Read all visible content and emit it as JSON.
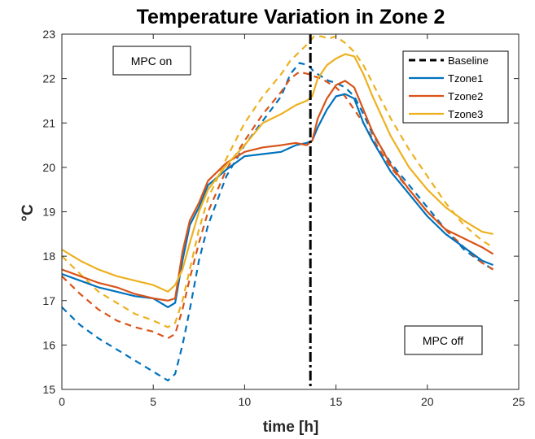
{
  "chart_data": {
    "type": "line",
    "title": "Temperature Variation in Zone 2",
    "xlabel": "time [h]",
    "ylabel": "°C",
    "xlim": [
      0,
      25
    ],
    "ylim": [
      15,
      23
    ],
    "xticks": [
      0,
      5,
      10,
      15,
      20,
      25
    ],
    "yticks": [
      15,
      16,
      17,
      18,
      19,
      20,
      21,
      22,
      23
    ],
    "grid": false,
    "legend": {
      "placement": "top-right",
      "entries": [
        {
          "label": "Baseline",
          "style": "dashed",
          "color": "#000000"
        },
        {
          "label": "Tzone1",
          "style": "solid",
          "color": "#0072BD"
        },
        {
          "label": "Tzone2",
          "style": "solid",
          "color": "#D95319"
        },
        {
          "label": "Tzone3",
          "style": "solid",
          "color": "#EDB120"
        }
      ]
    },
    "annotations": [
      {
        "id": "mpc-on",
        "text": "MPC on"
      },
      {
        "id": "mpc-off",
        "text": "MPC off"
      }
    ],
    "vline": {
      "x": 13.6,
      "style": "dash-dot",
      "color": "#000000"
    },
    "series": [
      {
        "name": "Tzone1",
        "style": "solid",
        "color": "#0072BD",
        "x": [
          0,
          1,
          2,
          3,
          4,
          5,
          5.8,
          6.2,
          6.6,
          7,
          7.5,
          8,
          9,
          10,
          11,
          12,
          12.8,
          13.4,
          13.7,
          14,
          14.5,
          15,
          15.5,
          16,
          16.5,
          17,
          18,
          19,
          20,
          21,
          22,
          23,
          23.6
        ],
        "y": [
          17.6,
          17.45,
          17.3,
          17.2,
          17.1,
          17.05,
          16.85,
          16.95,
          17.9,
          18.7,
          19.1,
          19.6,
          19.95,
          20.25,
          20.3,
          20.35,
          20.5,
          20.55,
          20.6,
          20.9,
          21.3,
          21.6,
          21.65,
          21.55,
          21.0,
          20.6,
          19.9,
          19.4,
          18.9,
          18.5,
          18.2,
          17.9,
          17.8
        ]
      },
      {
        "name": "Tzone2",
        "style": "solid",
        "color": "#D95319",
        "x": [
          0,
          1,
          2,
          3,
          4,
          5,
          5.8,
          6.2,
          6.6,
          7,
          7.5,
          8,
          9,
          10,
          11,
          12,
          12.8,
          13.4,
          13.7,
          14,
          14.5,
          15,
          15.5,
          16,
          16.5,
          17,
          18,
          19,
          20,
          21,
          22,
          23,
          23.6
        ],
        "y": [
          17.7,
          17.55,
          17.4,
          17.3,
          17.15,
          17.05,
          17.0,
          17.05,
          18.1,
          18.8,
          19.2,
          19.7,
          20.1,
          20.35,
          20.45,
          20.5,
          20.55,
          20.5,
          20.6,
          21.1,
          21.55,
          21.85,
          21.95,
          21.8,
          21.3,
          20.8,
          20.05,
          19.5,
          19.0,
          18.6,
          18.4,
          18.2,
          18.05
        ]
      },
      {
        "name": "Tzone3",
        "style": "solid",
        "color": "#EDB120",
        "x": [
          0,
          1,
          2,
          3,
          4,
          5,
          5.8,
          6.2,
          6.6,
          7,
          7.5,
          8,
          9,
          10,
          11,
          12,
          12.8,
          13.4,
          13.7,
          14,
          14.5,
          15,
          15.5,
          16,
          16.5,
          17,
          18,
          19,
          20,
          21,
          22,
          23,
          23.6
        ],
        "y": [
          18.15,
          17.9,
          17.7,
          17.55,
          17.45,
          17.35,
          17.2,
          17.35,
          17.7,
          18.3,
          19.0,
          19.5,
          20.05,
          20.5,
          21.0,
          21.2,
          21.4,
          21.5,
          21.6,
          22.0,
          22.3,
          22.45,
          22.55,
          22.5,
          22.1,
          21.6,
          20.7,
          20.0,
          19.5,
          19.1,
          18.8,
          18.55,
          18.5
        ]
      },
      {
        "name": "Baseline Tzone1",
        "style": "dashed",
        "color": "#0072BD",
        "x": [
          0,
          1,
          2,
          3,
          4,
          5,
          5.8,
          6.2,
          6.6,
          7,
          7.5,
          8,
          9,
          10,
          11,
          12,
          12.5,
          13,
          13.5,
          13.8,
          14.2,
          14.6,
          15,
          15.5,
          16,
          16.5,
          17,
          18,
          19,
          20,
          21,
          22,
          23,
          23.6
        ],
        "y": [
          16.85,
          16.45,
          16.15,
          15.9,
          15.65,
          15.4,
          15.2,
          15.35,
          16.0,
          16.8,
          17.9,
          18.7,
          19.8,
          20.5,
          21.05,
          21.6,
          22.1,
          22.35,
          22.3,
          22.15,
          22.05,
          21.95,
          21.9,
          21.8,
          21.6,
          21.2,
          20.75,
          20.1,
          19.6,
          19.1,
          18.6,
          18.15,
          17.85,
          17.7
        ]
      },
      {
        "name": "Baseline Tzone2",
        "style": "dashed",
        "color": "#D95319",
        "x": [
          0,
          1,
          2,
          3,
          4,
          5,
          5.8,
          6.2,
          6.6,
          7,
          7.5,
          8,
          9,
          10,
          11,
          12,
          12.5,
          13,
          13.5,
          13.8,
          14.2,
          14.6,
          15,
          15.5,
          16,
          16.5,
          17,
          18,
          19,
          20,
          21,
          22,
          23,
          23.6
        ],
        "y": [
          17.55,
          17.15,
          16.8,
          16.55,
          16.4,
          16.3,
          16.15,
          16.25,
          16.8,
          17.5,
          18.3,
          19.0,
          19.95,
          20.6,
          21.2,
          21.7,
          22.0,
          22.15,
          22.1,
          22.05,
          22.0,
          21.9,
          21.8,
          21.6,
          21.3,
          21.0,
          20.65,
          20.0,
          19.5,
          19.0,
          18.6,
          18.2,
          17.85,
          17.7
        ]
      },
      {
        "name": "Baseline Tzone3",
        "style": "dashed",
        "color": "#EDB120",
        "x": [
          0,
          1,
          2,
          3,
          4,
          5,
          5.8,
          6.2,
          6.6,
          7,
          7.5,
          8,
          9,
          10,
          11,
          12,
          12.5,
          13,
          13.5,
          13.8,
          14.2,
          14.6,
          15,
          15.5,
          16,
          16.5,
          17,
          18,
          19,
          20,
          21,
          22,
          23,
          23.6
        ],
        "y": [
          18.0,
          17.6,
          17.2,
          16.95,
          16.7,
          16.55,
          16.4,
          16.5,
          17.0,
          17.7,
          18.6,
          19.3,
          20.2,
          21.0,
          21.6,
          22.1,
          22.4,
          22.6,
          22.8,
          22.95,
          22.95,
          22.9,
          22.95,
          22.8,
          22.6,
          22.3,
          21.9,
          21.1,
          20.4,
          19.8,
          19.2,
          18.7,
          18.35,
          18.2
        ]
      }
    ]
  }
}
